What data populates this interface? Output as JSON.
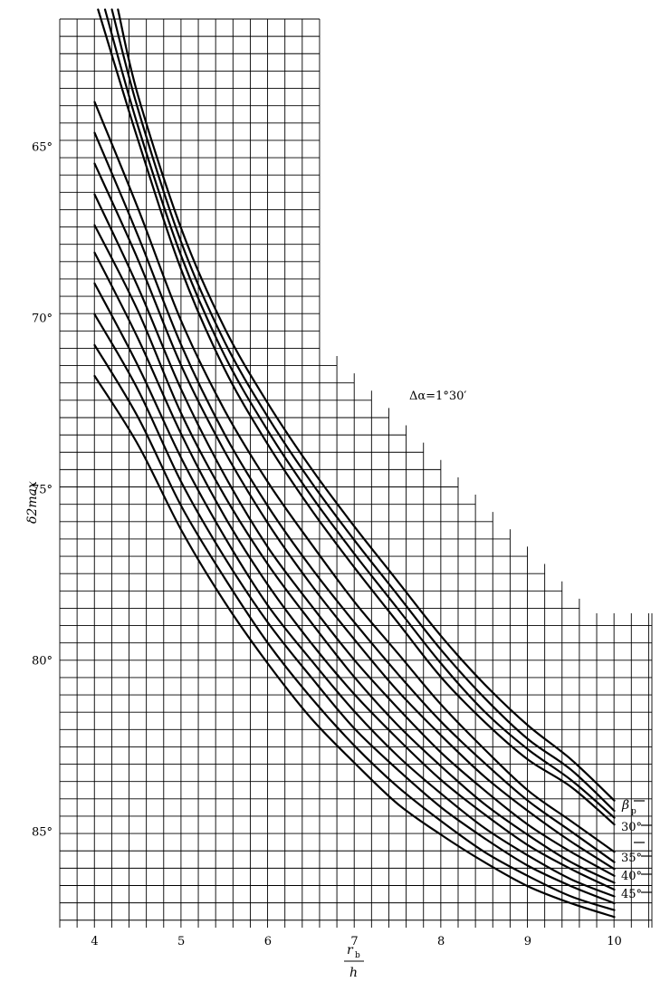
{
  "chart_data": {
    "type": "line",
    "title": "",
    "xlabel": "r_b / h",
    "ylabel": "δ2max",
    "xlim": [
      3.6,
      10.4
    ],
    "ylim": [
      61.0,
      87.6
    ],
    "y_inverted": true,
    "grid": true,
    "x_ticks": [
      "4",
      "5",
      "6",
      "7",
      "8",
      "9",
      "10"
    ],
    "y_ticks": [
      "65°",
      "70°",
      "75°",
      "80°",
      "85°"
    ],
    "annotation": "Δα=1°30′",
    "legend_title": "β",
    "legend_title_sub": "p",
    "legend_entries": [
      "30°",
      "35°",
      "40°",
      "45°"
    ],
    "series": [
      {
        "x": [
          4.04,
          4.5,
          5,
          5.5,
          6,
          6.5,
          7,
          7.5,
          8,
          8.5,
          9,
          9.5,
          10
        ],
        "y": [
          61.0,
          64.8,
          68.6,
          71.5,
          73.7,
          75.6,
          77.3,
          78.9,
          80.5,
          81.8,
          82.9,
          83.7,
          84.8
        ]
      },
      {
        "x": [
          4.12,
          4.5,
          5,
          5.5,
          6,
          6.5,
          7,
          7.5,
          8,
          8.5,
          9,
          9.5,
          10
        ],
        "y": [
          61.0,
          64.4,
          68.2,
          71.1,
          73.3,
          75.2,
          76.9,
          78.5,
          80.1,
          81.5,
          82.6,
          83.5,
          84.6
        ]
      },
      {
        "x": [
          4.2,
          4.5,
          5,
          5.5,
          6,
          6.5,
          7,
          7.5,
          8,
          8.5,
          9,
          9.5,
          10
        ],
        "y": [
          61.0,
          63.9,
          67.8,
          70.7,
          72.9,
          74.8,
          76.5,
          78.1,
          79.7,
          81.1,
          82.3,
          83.2,
          84.4
        ]
      },
      {
        "x": [
          4.27,
          4.5,
          5,
          5.5,
          6,
          6.5,
          7,
          7.5,
          8,
          8.5,
          9,
          9.5,
          10
        ],
        "y": [
          61.0,
          63.5,
          67.4,
          70.3,
          72.5,
          74.4,
          76.1,
          77.7,
          79.3,
          80.7,
          81.9,
          82.9,
          84.1
        ]
      },
      {
        "x": [
          4.0,
          4.5,
          5,
          5.5,
          6,
          6.5,
          7,
          7.5,
          8,
          8.5,
          9,
          9.5,
          10
        ],
        "y": [
          63.7,
          66.8,
          70.1,
          72.7,
          74.8,
          76.6,
          78.3,
          79.8,
          81.3,
          82.6,
          83.8,
          84.7,
          85.6
        ]
      },
      {
        "x": [
          4.0,
          4.5,
          5,
          5.5,
          6,
          6.5,
          7,
          7.5,
          8,
          8.5,
          9,
          9.5,
          10
        ],
        "y": [
          64.6,
          67.6,
          70.8,
          73.4,
          75.5,
          77.3,
          78.9,
          80.4,
          81.8,
          83.0,
          84.1,
          85.0,
          85.9
        ]
      },
      {
        "x": [
          4.0,
          4.5,
          5,
          5.5,
          6,
          6.5,
          7,
          7.5,
          8,
          8.5,
          9,
          9.5,
          10
        ],
        "y": [
          65.5,
          68.3,
          71.4,
          73.9,
          76.0,
          77.8,
          79.4,
          80.9,
          82.2,
          83.4,
          84.4,
          85.3,
          86.1
        ]
      },
      {
        "x": [
          4.0,
          4.5,
          5,
          5.5,
          6,
          6.5,
          7,
          7.5,
          8,
          8.5,
          9,
          9.5,
          10
        ],
        "y": [
          66.4,
          69.1,
          72.1,
          74.6,
          76.7,
          78.4,
          80.0,
          81.4,
          82.7,
          83.8,
          84.8,
          85.6,
          86.3
        ]
      },
      {
        "x": [
          4.0,
          4.5,
          5,
          5.5,
          6,
          6.5,
          7,
          7.5,
          8,
          8.5,
          9,
          9.5,
          10
        ],
        "y": [
          67.3,
          69.8,
          72.8,
          75.2,
          77.2,
          78.9,
          80.5,
          81.9,
          83.1,
          84.2,
          85.1,
          85.9,
          86.5
        ]
      },
      {
        "x": [
          4.0,
          4.5,
          5,
          5.5,
          6,
          6.5,
          7,
          7.5,
          8,
          8.5,
          9,
          9.5,
          10
        ],
        "y": [
          68.1,
          70.6,
          73.4,
          75.8,
          77.8,
          79.5,
          81.0,
          82.3,
          83.5,
          84.5,
          85.4,
          86.1,
          86.7
        ]
      },
      {
        "x": [
          4.0,
          4.5,
          5,
          5.5,
          6,
          6.5,
          7,
          7.5,
          8,
          8.5,
          9,
          9.5,
          10
        ],
        "y": [
          69.0,
          71.4,
          74.1,
          76.4,
          78.4,
          80.0,
          81.5,
          82.8,
          83.9,
          84.9,
          85.7,
          86.4,
          86.9
        ]
      },
      {
        "x": [
          4.0,
          4.5,
          5,
          5.5,
          6,
          6.5,
          7,
          7.5,
          8,
          8.5,
          9,
          9.5,
          10
        ],
        "y": [
          69.9,
          72.1,
          74.8,
          77.0,
          78.9,
          80.5,
          82.0,
          83.2,
          84.3,
          85.2,
          86.0,
          86.6,
          87.1
        ]
      },
      {
        "x": [
          4.0,
          4.5,
          5,
          5.5,
          6,
          6.5,
          7,
          7.5,
          8,
          8.5,
          9,
          9.5,
          10
        ],
        "y": [
          70.8,
          72.9,
          75.5,
          77.6,
          79.5,
          81.1,
          82.5,
          83.7,
          84.7,
          85.6,
          86.3,
          86.9,
          87.3
        ]
      },
      {
        "x": [
          4.0,
          4.5,
          5,
          5.5,
          6,
          6.5,
          7,
          7.5,
          8,
          8.5,
          9,
          9.5,
          10
        ],
        "y": [
          71.7,
          73.7,
          76.2,
          78.3,
          80.1,
          81.7,
          83.0,
          84.2,
          85.1,
          85.9,
          86.6,
          87.1,
          87.5
        ]
      }
    ]
  }
}
